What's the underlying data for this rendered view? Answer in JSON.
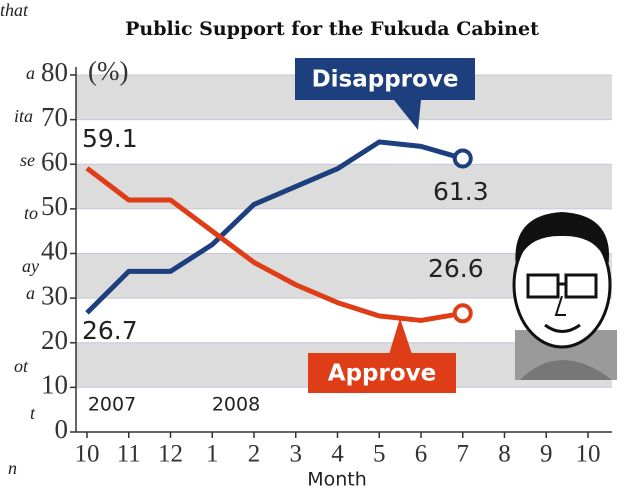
{
  "side_text": [
    "that",
    "a",
    "ita",
    "se",
    "to",
    "ay",
    "a",
    "ot",
    "t",
    "n"
  ],
  "chart_data": {
    "type": "line",
    "title": "Public Support for the Fukuda Cabinet",
    "unit_label": "(%)",
    "xlabel": "Month",
    "year_labels": [
      "2007",
      "2008"
    ],
    "categories": [
      "10",
      "11",
      "12",
      "1",
      "2",
      "3",
      "4",
      "5",
      "6",
      "7",
      "8",
      "9",
      "10"
    ],
    "series": [
      {
        "name": "Disapprove",
        "color": "#1d3f7e",
        "values": [
          26.7,
          36,
          36,
          42,
          51,
          55,
          59,
          65,
          64,
          61.3,
          null,
          null,
          null
        ],
        "value_labels": [
          "26.7",
          null,
          null,
          null,
          null,
          null,
          null,
          null,
          null,
          "61.3",
          null,
          null,
          null
        ]
      },
      {
        "name": "Approve",
        "color": "#de3d17",
        "values": [
          59.1,
          52,
          52,
          45,
          38,
          33,
          29,
          26,
          25,
          26.6,
          null,
          null,
          null
        ],
        "value_labels": [
          "59.1",
          null,
          null,
          null,
          null,
          null,
          null,
          null,
          null,
          "26.6",
          null,
          null,
          null
        ]
      }
    ],
    "ylim": [
      0,
      80
    ],
    "yticks": [
      0,
      10,
      20,
      30,
      40,
      50,
      60,
      70,
      80
    ],
    "grid": true
  }
}
